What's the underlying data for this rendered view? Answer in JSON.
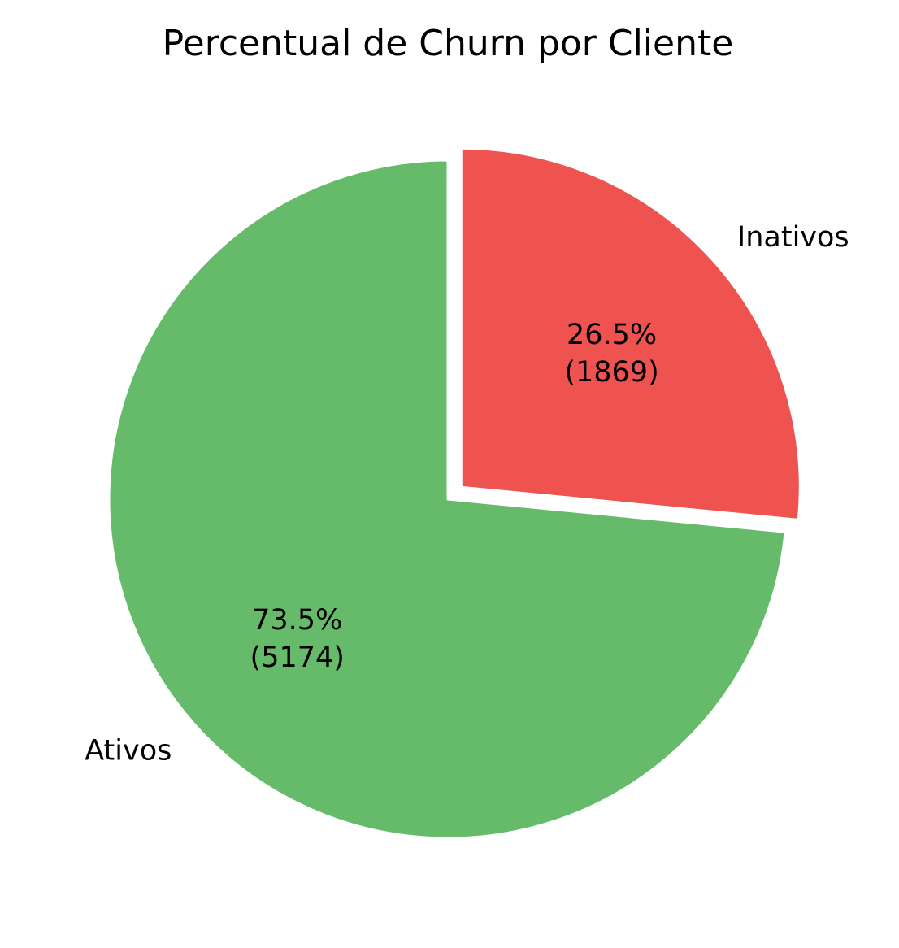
{
  "chart_data": {
    "type": "pie",
    "title": "Percentual de Churn por Cliente",
    "slices": [
      {
        "label": "Inativos",
        "value": 1869,
        "percent_text": "26.5%",
        "count_text": "(1869)",
        "color": "#ef5350",
        "exploded": true
      },
      {
        "label": "Ativos",
        "value": 5174,
        "percent_text": "73.5%",
        "count_text": "(5174)",
        "color": "#66bb6a",
        "exploded": false
      }
    ],
    "start_angle_deg": 90,
    "direction": "clockwise",
    "wedge_edge_color": "#ffffff"
  }
}
